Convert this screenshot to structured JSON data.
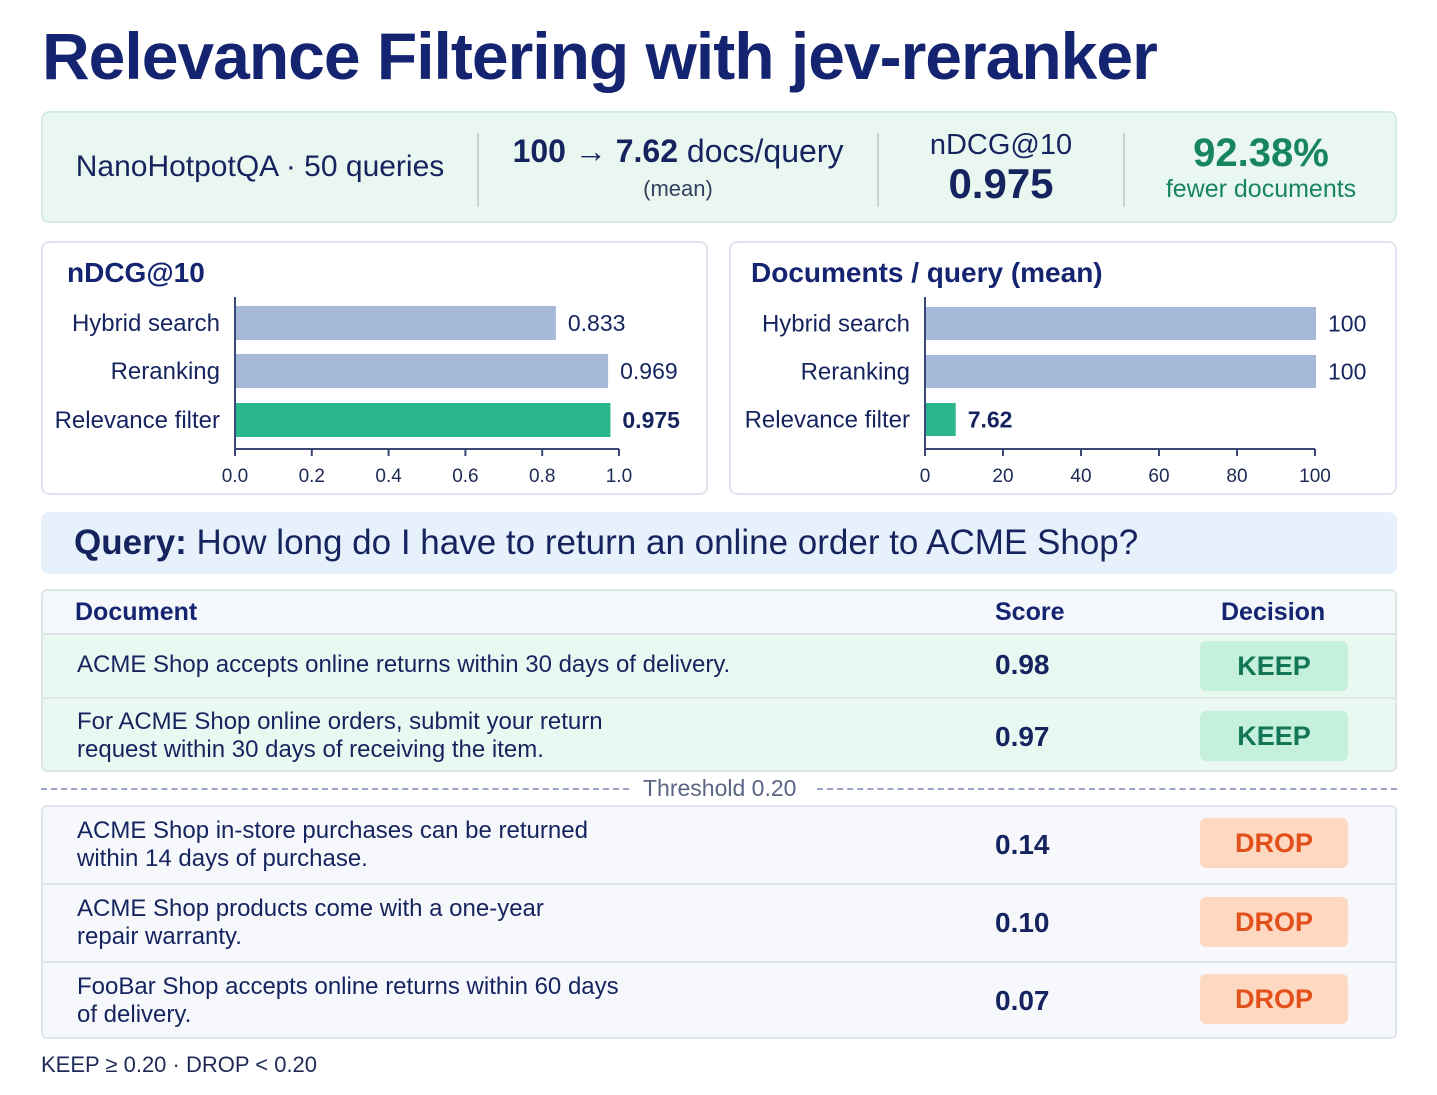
{
  "title": "Relevance Filtering with jev-reranker",
  "stats": {
    "dataset": "NanoHotpotQA · 50 queries",
    "docs_from": "100",
    "docs_arrow": "→",
    "docs_to": "7.62",
    "docs_unit": "docs/query",
    "docs_note": "(mean)",
    "ndcg_label": "nDCG@10",
    "ndcg_value": "0.975",
    "reduction_value": "92.38%",
    "reduction_label": "fewer documents"
  },
  "chart_data": [
    {
      "type": "bar",
      "orientation": "horizontal",
      "title": "nDCG@10",
      "categories": [
        "Hybrid search",
        "Reranking",
        "Relevance filter"
      ],
      "values": [
        0.833,
        0.969,
        0.975
      ],
      "value_labels": [
        "0.833",
        "0.969",
        "0.975"
      ],
      "xlim": [
        0,
        1.0
      ],
      "ticks": [
        "0.0",
        "0.2",
        "0.4",
        "0.6",
        "0.8",
        "1.0"
      ],
      "highlight_index": 2,
      "colors": {
        "base": "#a7b9d9",
        "highlight": "#2bb58c"
      }
    },
    {
      "type": "bar",
      "orientation": "horizontal",
      "title": "Documents / query (mean)",
      "categories": [
        "Hybrid search",
        "Reranking",
        "Relevance filter"
      ],
      "values": [
        100,
        100,
        7.62
      ],
      "value_labels": [
        "100",
        "100",
        "7.62"
      ],
      "xlim": [
        0,
        100
      ],
      "ticks": [
        "0",
        "20",
        "40",
        "60",
        "80",
        "100"
      ],
      "highlight_index": 2,
      "colors": {
        "base": "#a7b9d9",
        "highlight": "#2bb58c"
      }
    }
  ],
  "query": {
    "label": "Query:",
    "text": "How long do I have to return an online order to ACME Shop?"
  },
  "table": {
    "headers": {
      "document": "Document",
      "score": "Score",
      "decision": "Decision"
    },
    "keep_rows": [
      {
        "doc": "ACME Shop accepts online returns within 30 days of delivery.",
        "score": "0.98",
        "decision": "KEEP"
      },
      {
        "doc": "For ACME Shop online orders, submit your return request within 30 days of receiving the item.",
        "score": "0.97",
        "decision": "KEEP"
      }
    ],
    "threshold_label": "Threshold 0.20",
    "drop_rows": [
      {
        "doc": "ACME Shop in-store purchases can be returned within 14 days of purchase.",
        "score": "0.14",
        "decision": "DROP"
      },
      {
        "doc": "ACME Shop products come with a one-year repair warranty.",
        "score": "0.10",
        "decision": "DROP"
      },
      {
        "doc": "FooBar Shop accepts online returns within 60 days of delivery.",
        "score": "0.07",
        "decision": "DROP"
      }
    ]
  },
  "legend": "KEEP ≥ 0.20 · DROP < 0.20"
}
